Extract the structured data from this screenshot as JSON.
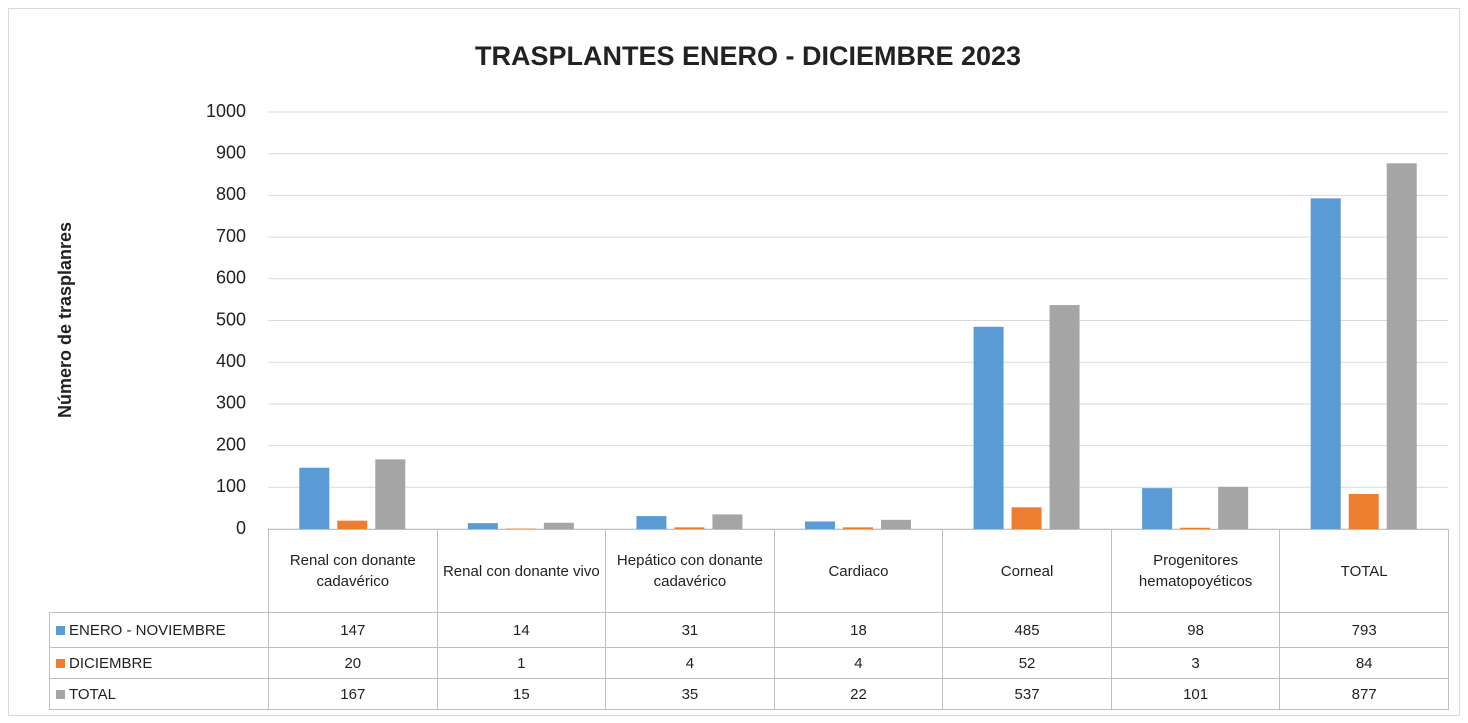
{
  "chart_data": {
    "type": "bar",
    "title": "TRASPLANTES ENERO - DICIEMBRE 2023",
    "y_label": "Número de trasplanres",
    "categories": [
      "Renal con donante cadavérico",
      "Renal con donante vivo",
      "Hepático con donante cadavérico",
      "Cardiaco",
      "Corneal",
      "Progenitores hematopoyéticos",
      "TOTAL"
    ],
    "series": [
      {
        "name": "ENERO - NOVIEMBRE",
        "color": "#5b9bd5",
        "values": [
          147,
          14,
          31,
          18,
          485,
          98,
          793
        ]
      },
      {
        "name": "DICIEMBRE",
        "color": "#ed7d31",
        "values": [
          20,
          1,
          4,
          4,
          52,
          3,
          84
        ]
      },
      {
        "name": "TOTAL",
        "color": "#a5a5a5",
        "values": [
          167,
          15,
          35,
          22,
          537,
          101,
          877
        ]
      }
    ],
    "ylim": [
      0,
      1000
    ],
    "yticks": [
      0,
      100,
      200,
      300,
      400,
      500,
      600,
      700,
      800,
      900,
      1000
    ],
    "grid": true,
    "data_table": true
  }
}
